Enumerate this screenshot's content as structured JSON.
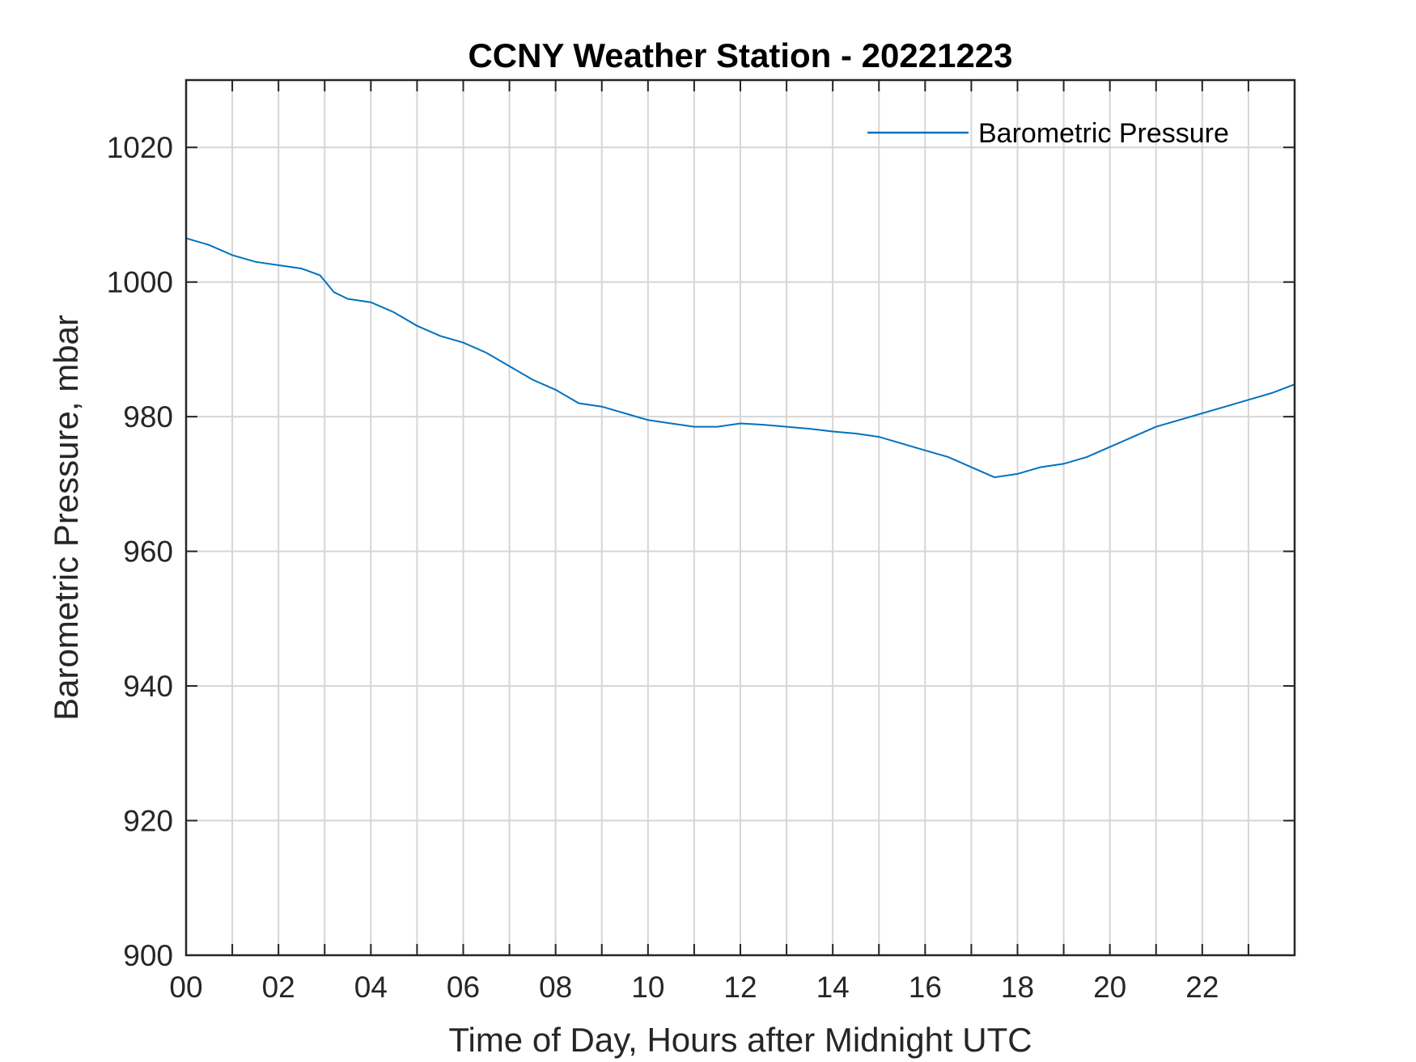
{
  "chart_data": {
    "type": "line",
    "title": "CCNY Weather Station - 20221223",
    "xlabel": "Time of Day, Hours after Midnight UTC",
    "ylabel": "Barometric Pressure, mbar",
    "xlim": [
      0,
      24
    ],
    "ylim": [
      900,
      1030
    ],
    "x_ticks": [
      0,
      2,
      4,
      6,
      8,
      10,
      12,
      14,
      16,
      18,
      20,
      22
    ],
    "x_tick_labels": [
      "00",
      "02",
      "04",
      "06",
      "08",
      "10",
      "12",
      "14",
      "16",
      "18",
      "20",
      "22"
    ],
    "y_ticks": [
      900,
      920,
      940,
      960,
      980,
      1000,
      1020
    ],
    "y_tick_labels": [
      "900",
      "920",
      "940",
      "960",
      "980",
      "1000",
      "1020"
    ],
    "grid": true,
    "legend_position": "top-right",
    "series": [
      {
        "name": "Barometric Pressure",
        "color": "#0072BD",
        "x": [
          0,
          0.5,
          1,
          1.5,
          2,
          2.5,
          2.9,
          3.2,
          3.5,
          4,
          4.5,
          5,
          5.5,
          6,
          6.5,
          7,
          7.5,
          8,
          8.5,
          9,
          9.5,
          10,
          10.5,
          11,
          11.5,
          12,
          12.5,
          13,
          13.5,
          14,
          14.5,
          15,
          15.5,
          16,
          16.5,
          17,
          17.5,
          18,
          18.5,
          19,
          19.5,
          20,
          20.5,
          21,
          21.5,
          22,
          22.5,
          23,
          23.5,
          24
        ],
        "y": [
          1006.5,
          1005.5,
          1004,
          1003,
          1002.5,
          1002,
          1001,
          998.5,
          997.5,
          997,
          995.5,
          993.5,
          992,
          991,
          989.5,
          987.5,
          985.5,
          984,
          982,
          981.5,
          980.5,
          979.5,
          979,
          978.5,
          978.5,
          979,
          978.8,
          978.5,
          978.2,
          977.8,
          977.5,
          977,
          976,
          975,
          974,
          972.5,
          971,
          971.5,
          972.5,
          973,
          974,
          975.5,
          977,
          978.5,
          979.5,
          980.5,
          981.5,
          982.5,
          983.5,
          984.8
        ]
      }
    ]
  }
}
